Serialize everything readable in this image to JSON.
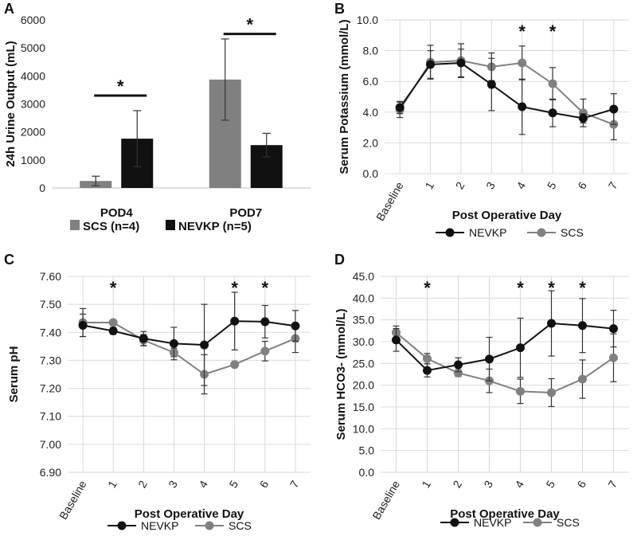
{
  "figure": {
    "colors": {
      "nevkp": "#111111",
      "scs": "#808080",
      "axis": "#bfbfbf",
      "grid": "#d9d9d9"
    },
    "significance_marker": "*"
  },
  "chart_data": [
    {
      "panel": "A",
      "type": "bar",
      "title": "",
      "ylabel": "24h Urine Output (mL)",
      "xlabel": "",
      "ylim": [
        0,
        6000
      ],
      "yticks": [
        0,
        1000,
        2000,
        3000,
        4000,
        5000,
        6000
      ],
      "ytick_labels": [
        "0",
        "1000",
        "2000",
        "3000",
        "4000",
        "5000",
        "6000"
      ],
      "categories": [
        "POD4",
        "POD7"
      ],
      "series": [
        {
          "name": "SCS (n=4)",
          "color": "#808080",
          "values": [
            250,
            3870
          ],
          "errors": [
            170,
            1450
          ]
        },
        {
          "name": "NEVKP (n=5)",
          "color": "#111111",
          "values": [
            1760,
            1530
          ],
          "errors": [
            1000,
            420
          ]
        }
      ],
      "significance": [
        {
          "category": "POD4",
          "label": "*",
          "bar_level": 3300
        },
        {
          "category": "POD7",
          "label": "*",
          "bar_level": 5500
        }
      ],
      "legend": [
        "SCS (n=4)",
        "NEVKP (n=5)"
      ],
      "grid": false
    },
    {
      "panel": "B",
      "type": "line",
      "ylabel": "Serum Potassium  (mmol/L)",
      "xlabel": "Post Operative Day",
      "categories": [
        "Baseline",
        "1",
        "2",
        "3",
        "4",
        "5",
        "6",
        "7"
      ],
      "ylim": [
        0,
        10
      ],
      "yticks": [
        0,
        2,
        4,
        6,
        8,
        10
      ],
      "ytick_labels": [
        "0.0",
        "2.0",
        "4.0",
        "6.0",
        "8.0",
        "10.0"
      ],
      "series": [
        {
          "name": "NEVKP",
          "color": "#111111",
          "values": [
            4.3,
            7.1,
            7.2,
            5.8,
            4.35,
            3.95,
            3.6,
            4.2
          ],
          "errors": [
            0.4,
            0.9,
            0.9,
            1.7,
            1.8,
            0.9,
            0.3,
            1.0
          ]
        },
        {
          "name": "SCS",
          "color": "#808080",
          "values": [
            4.15,
            7.25,
            7.35,
            6.95,
            7.2,
            5.85,
            3.95,
            3.2
          ],
          "errors": [
            0.5,
            1.1,
            1.1,
            0.9,
            1.1,
            1.05,
            0.9,
            1.0
          ]
        }
      ],
      "significance": [
        {
          "category": "4",
          "label": "*"
        },
        {
          "category": "5",
          "label": "*"
        }
      ],
      "legend": [
        "NEVKP",
        "SCS"
      ],
      "grid": true
    },
    {
      "panel": "C",
      "type": "line",
      "ylabel": "Serum pH",
      "xlabel": "Post Operative Day",
      "categories": [
        "Baseline",
        "1",
        "2",
        "3",
        "4",
        "5",
        "6",
        "7"
      ],
      "ylim": [
        6.9,
        7.6
      ],
      "yticks": [
        6.9,
        7.0,
        7.1,
        7.2,
        7.3,
        7.4,
        7.5,
        7.6
      ],
      "ytick_labels": [
        "6.90",
        "7.00",
        "7.10",
        "7.20",
        "7.30",
        "7.40",
        "7.50",
        "7.60"
      ],
      "series": [
        {
          "name": "NEVKP",
          "color": "#111111",
          "values": [
            7.425,
            7.405,
            7.378,
            7.36,
            7.355,
            7.44,
            7.438,
            7.423
          ],
          "errors": [
            0.04,
            0.012,
            0.025,
            0.058,
            0.145,
            0.103,
            0.058,
            0.055
          ]
        },
        {
          "name": "SCS",
          "color": "#808080",
          "values": [
            7.435,
            7.435,
            7.372,
            7.328,
            7.25,
            7.285,
            7.333,
            7.378
          ],
          "errors": [
            0.05,
            0.008,
            0.02,
            0.015,
            0.07,
            0.006,
            0.035,
            0.05
          ]
        }
      ],
      "significance": [
        {
          "category": "1",
          "label": "*"
        },
        {
          "category": "5",
          "label": "*"
        },
        {
          "category": "6",
          "label": "*"
        }
      ],
      "legend": [
        "NEVKP",
        "SCS"
      ],
      "grid": true
    },
    {
      "panel": "D",
      "type": "line",
      "ylabel": "Serum HCO3- (mmol/L)",
      "xlabel": "Post Operative Day",
      "categories": [
        "Baseline",
        "1",
        "2",
        "3",
        "4",
        "5",
        "6",
        "7"
      ],
      "ylim": [
        0,
        45
      ],
      "yticks": [
        0,
        5,
        10,
        15,
        20,
        25,
        30,
        35,
        40,
        45
      ],
      "ytick_labels": [
        "0.0",
        "5.0",
        "10.0",
        "15.0",
        "20.0",
        "25.0",
        "30.0",
        "35.0",
        "40.0",
        "45.0"
      ],
      "series": [
        {
          "name": "NEVKP",
          "color": "#111111",
          "values": [
            30.4,
            23.4,
            24.7,
            26.0,
            28.6,
            34.2,
            33.7,
            33.0
          ],
          "errors": [
            2.6,
            1.5,
            1.6,
            5.0,
            6.8,
            7.5,
            6.2,
            4.2
          ]
        },
        {
          "name": "SCS",
          "color": "#808080",
          "values": [
            32.1,
            26.1,
            22.8,
            21.0,
            18.6,
            18.3,
            21.4,
            26.3
          ],
          "errors": [
            1.5,
            1.2,
            0.8,
            2.7,
            2.8,
            3.2,
            4.4,
            5.5
          ]
        }
      ],
      "significance": [
        {
          "category": "1",
          "label": "*"
        },
        {
          "category": "4",
          "label": "*"
        },
        {
          "category": "5",
          "label": "*"
        },
        {
          "category": "6",
          "label": "*"
        }
      ],
      "legend": [
        "NEVKP",
        "SCS"
      ],
      "grid": true
    }
  ]
}
